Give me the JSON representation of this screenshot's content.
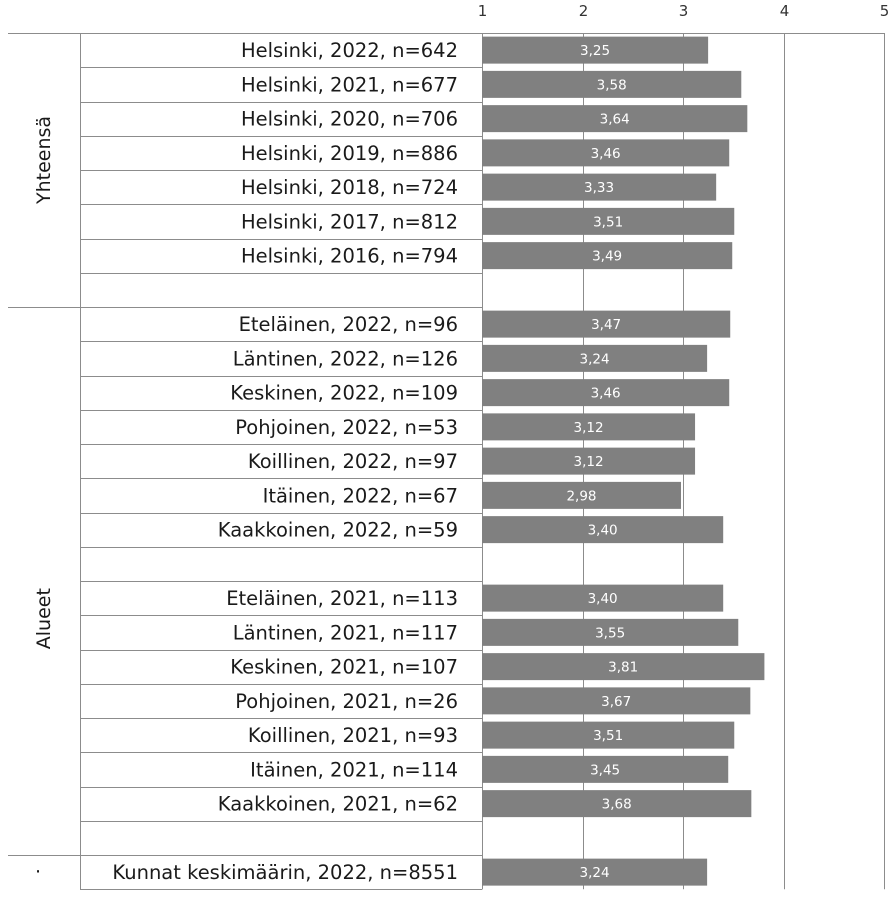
{
  "chart_data": {
    "type": "bar",
    "orientation": "horizontal",
    "title": "",
    "xlabel": "",
    "ylabel": "",
    "xlim": [
      1,
      5
    ],
    "x_ticks": [
      "1",
      "2",
      "3",
      "4",
      "5"
    ],
    "grid": true,
    "bar_color": "#808080",
    "groups": [
      {
        "name": "Yhteensä",
        "categories": [
          "Helsinki, 2022, n=642",
          "Helsinki, 2021, n=677",
          "Helsinki, 2020, n=706",
          "Helsinki, 2019, n=886",
          "Helsinki, 2018, n=724",
          "Helsinki, 2017, n=812",
          "Helsinki, 2016, n=794",
          ""
        ],
        "values": [
          3.25,
          3.58,
          3.64,
          3.46,
          3.33,
          3.51,
          3.49,
          null
        ],
        "value_labels": [
          "3,25",
          "3,58",
          "3,64",
          "3,46",
          "3,33",
          "3,51",
          "3,49",
          ""
        ]
      },
      {
        "name": "Alueet",
        "categories": [
          "Eteläinen, 2022, n=96",
          "Läntinen, 2022, n=126",
          "Keskinen, 2022, n=109",
          "Pohjoinen, 2022, n=53",
          "Koillinen, 2022, n=97",
          "Itäinen, 2022, n=67",
          "Kaakkoinen, 2022, n=59",
          "",
          "Eteläinen, 2021, n=113",
          "Läntinen, 2021, n=117",
          "Keskinen, 2021, n=107",
          "Pohjoinen, 2021, n=26",
          "Koillinen, 2021, n=93",
          "Itäinen, 2021, n=114",
          "Kaakkoinen, 2021, n=62",
          ""
        ],
        "values": [
          3.47,
          3.24,
          3.46,
          3.12,
          3.12,
          2.98,
          3.4,
          null,
          3.4,
          3.55,
          3.81,
          3.67,
          3.51,
          3.45,
          3.68,
          null
        ],
        "value_labels": [
          "3,47",
          "3,24",
          "3,46",
          "3,12",
          "3,12",
          "2,98",
          "3,40",
          "",
          "3,40",
          "3,55",
          "3,81",
          "3,67",
          "3,51",
          "3,45",
          "3,68",
          ""
        ]
      },
      {
        "name": "·",
        "categories": [
          "Kunnat keskimäärin, 2022, n=8551"
        ],
        "values": [
          3.24
        ],
        "value_labels": [
          "3,24"
        ]
      }
    ]
  }
}
